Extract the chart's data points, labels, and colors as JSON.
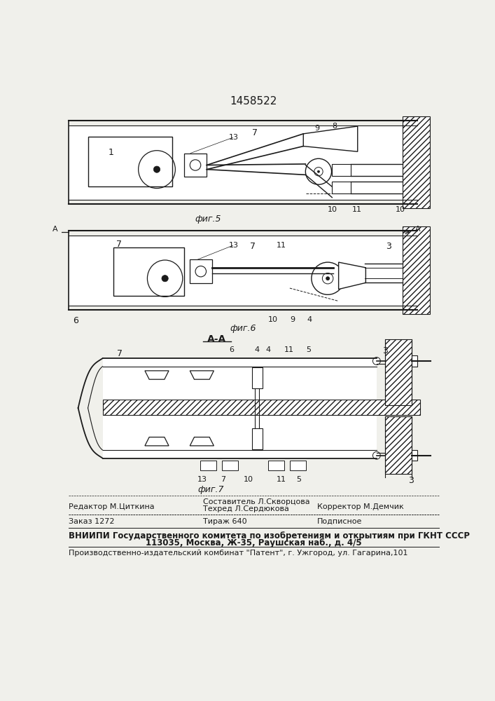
{
  "patent_number": "1458522",
  "bg_color": "#f0f0eb",
  "line_color": "#1a1a1a",
  "fig5_caption": "фиг.5",
  "fig6_caption": "фиг.6",
  "fig7_caption": "фиг.7",
  "section_label": "А-А",
  "footer": {
    "row0": "Составитель Л.Скворцова",
    "row1_left": "Редактор М.Циткина",
    "row1_mid": "Техред Л.Сердюкова",
    "row1_right": "Корректор М.Демчик",
    "row2_left": "Заказ 1272",
    "row2_mid": "Тираж 640",
    "row2_right": "Подписное",
    "row3": "ВНИИПИ Государственного комитета по изобретениям и открытиям при ГКНТ СССР",
    "row4": "113035, Москва, Ж-35, Раушская наб., д. 4/5",
    "row5": "Производственно-издательский комбинат \"Патент\", г. Ужгород, ул. Гагарина,101"
  }
}
